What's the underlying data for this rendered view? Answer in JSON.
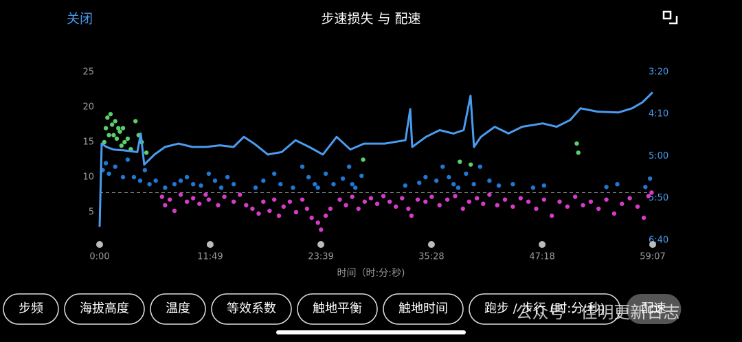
{
  "header": {
    "close": "关闭",
    "title": "步速损失 与 配速"
  },
  "chart_data": {
    "type": "scatter",
    "xlabel": "时间（时:分:秒)",
    "xlim": [
      0,
      3547
    ],
    "xticks": [
      {
        "value": 0,
        "label": "0:00"
      },
      {
        "value": 709,
        "label": "11:49"
      },
      {
        "value": 1419,
        "label": "23:39"
      },
      {
        "value": 2128,
        "label": "35:28"
      },
      {
        "value": 2838,
        "label": "47:18"
      },
      {
        "value": 3547,
        "label": "59:07"
      }
    ],
    "ylim": [
      0,
      25
    ],
    "yticks": [
      5,
      10,
      15,
      20,
      25
    ],
    "y2lim": [
      408.2,
      200
    ],
    "y2ticks": [
      {
        "value": 200,
        "label": "3:20"
      },
      {
        "value": 250,
        "label": "4:10"
      },
      {
        "value": 300,
        "label": "5:00"
      },
      {
        "value": 350,
        "label": "5:50"
      },
      {
        "value": 400,
        "label": "6:40"
      }
    ],
    "hline": 7.8,
    "series": [
      {
        "type": "scatter",
        "color": "#5ccf6a",
        "x": [
          30,
          40,
          50,
          60,
          70,
          80,
          90,
          100,
          110,
          120,
          130,
          140,
          150,
          160,
          180,
          200,
          230,
          250,
          270,
          300,
          1690,
          2310,
          2380,
          3060,
          3070
        ],
        "values": [
          15,
          17,
          18.5,
          16,
          19,
          17.5,
          16,
          18,
          15.5,
          17,
          16.5,
          14.5,
          17,
          15,
          15.5,
          14,
          18,
          16,
          15,
          13.5,
          12.5,
          12.2,
          11.8,
          14.8,
          13.5
        ]
      },
      {
        "type": "scatter",
        "color": "#1e78d4",
        "x": [
          20,
          40,
          60,
          100,
          150,
          180,
          220,
          260,
          290,
          320,
          360,
          420,
          480,
          520,
          560,
          600,
          650,
          700,
          740,
          780,
          820,
          860,
          1000,
          1050,
          1120,
          1160,
          1240,
          1300,
          1340,
          1380,
          1400,
          1450,
          1500,
          1560,
          1600,
          1620,
          1640,
          1680,
          1960,
          2050,
          2090,
          2160,
          2200,
          2240,
          2270,
          2300,
          2350,
          2400,
          2440,
          2500,
          2560,
          2650,
          2780,
          2850,
          3250,
          3320,
          3500,
          3530
        ],
        "values": [
          11,
          12,
          10.5,
          11.5,
          10,
          12.5,
          10,
          9.5,
          11,
          9,
          9.5,
          8.5,
          9,
          9.5,
          10,
          9,
          8.8,
          10.5,
          9.5,
          8.5,
          10,
          9,
          8.5,
          9.5,
          10.5,
          9,
          8.5,
          11.5,
          10,
          9,
          8.5,
          10.5,
          9,
          9.8,
          11.5,
          9,
          8.5,
          10.2,
          8.8,
          9.2,
          10,
          9.5,
          11.5,
          10,
          9,
          8.5,
          10.5,
          9,
          11.5,
          9.5,
          8.8,
          9,
          8.5,
          8.8,
          8.6,
          9,
          8.6,
          9.8
        ]
      },
      {
        "type": "scatter",
        "color": "#d63cc8",
        "x": [
          400,
          420,
          450,
          480,
          520,
          560,
          600,
          640,
          680,
          700,
          760,
          800,
          860,
          900,
          940,
          980,
          1020,
          1050,
          1090,
          1120,
          1150,
          1180,
          1220,
          1260,
          1300,
          1330,
          1360,
          1400,
          1420,
          1450,
          1480,
          1540,
          1580,
          1620,
          1660,
          1700,
          1740,
          1780,
          1820,
          1860,
          1900,
          1940,
          1980,
          2000,
          2040,
          2090,
          2130,
          2180,
          2230,
          2280,
          2330,
          2370,
          2420,
          2460,
          2500,
          2550,
          2600,
          2650,
          2700,
          2750,
          2800,
          2850,
          2900,
          2950,
          3000,
          3050,
          3100,
          3150,
          3200,
          3250,
          3300,
          3350,
          3400,
          3450,
          3490,
          3520,
          3540
        ],
        "values": [
          7.2,
          6,
          6.8,
          5.2,
          7.5,
          6.5,
          7,
          6.2,
          7.5,
          6.8,
          6,
          7.2,
          6.5,
          7.5,
          6,
          5.5,
          4.8,
          6.5,
          5.2,
          6.8,
          4.5,
          5.8,
          6.5,
          5,
          6.8,
          5.5,
          4.2,
          3.5,
          2.5,
          4.5,
          5.5,
          6.8,
          6,
          7.2,
          5.5,
          6.5,
          7,
          6.2,
          7.3,
          6.5,
          5.8,
          7,
          5.5,
          4.5,
          6.8,
          6.5,
          7.2,
          6,
          6.8,
          7.3,
          5.5,
          6.5,
          7,
          6.2,
          7.5,
          6,
          6.8,
          5.8,
          7,
          6.5,
          5.5,
          6.8,
          4.5,
          6.5,
          5.8,
          7.2,
          6,
          6.5,
          5.5,
          6.8,
          4.8,
          6.2,
          7,
          5.8,
          4.2,
          7.3,
          7.8
        ]
      },
      {
        "type": "line",
        "axis": "y2",
        "color": "#4a9cf0",
        "x": [
          0,
          13,
          44,
          88,
          154,
          242,
          264,
          286,
          352,
          419,
          507,
          595,
          683,
          771,
          859,
          925,
          991,
          1079,
          1168,
          1256,
          1344,
          1432,
          1520,
          1608,
          1696,
          1828,
          1961,
          1992,
          2005,
          2093,
          2181,
          2269,
          2335,
          2379,
          2401,
          2445,
          2534,
          2622,
          2710,
          2842,
          2930,
          3018,
          3084,
          3194,
          3327,
          3415,
          3481,
          3547
        ],
        "values": [
          384,
          285,
          289,
          292,
          293,
          295,
          273,
          310,
          298,
          289,
          285,
          289,
          289,
          287,
          289,
          277,
          285,
          298,
          295,
          281,
          289,
          298,
          277,
          292,
          285,
          285,
          281,
          244,
          289,
          277,
          269,
          273,
          269,
          228,
          289,
          277,
          265,
          273,
          265,
          261,
          265,
          257,
          243,
          247,
          248,
          243,
          236,
          224
        ]
      }
    ]
  },
  "buttons": [
    {
      "label": "步频",
      "selected": false
    },
    {
      "label": "海拔高度",
      "selected": false
    },
    {
      "label": "温度",
      "selected": false
    },
    {
      "label": "等效系数",
      "selected": false
    },
    {
      "label": "触地平衡",
      "selected": false
    },
    {
      "label": "触地时间",
      "selected": false
    },
    {
      "label": "跑步 / 步行 (时:分:秒)",
      "selected": false
    },
    {
      "label": "配速",
      "selected": true
    }
  ],
  "watermark": "公众号 · 佳明更新日志"
}
